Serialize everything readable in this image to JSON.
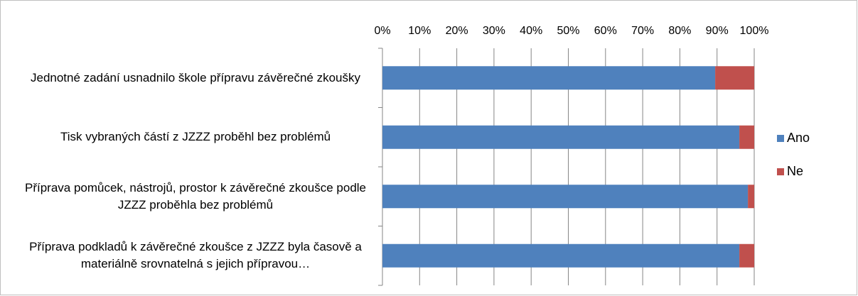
{
  "chart_data": {
    "type": "stacked_barh",
    "categories": [
      "Jednotné zadání usnadnilo škole přípravu závěrečné zkoušky",
      "Tisk vybraných částí z JZZZ proběhl bez problémů",
      "Příprava pomůcek, nástrojů, prostor k závěrečné zkoušce podle JZZZ proběhla bez problémů",
      "Příprava podkladů k závěrečné zkoušce z JZZZ byla časově a materiálně srovnatelná s jejich přípravou…"
    ],
    "series": [
      {
        "name": "Ano",
        "color": "#4f81bd",
        "values": [
          89.5,
          96,
          98.3,
          96
        ]
      },
      {
        "name": "Ne",
        "color": "#c0504d",
        "values": [
          10.5,
          4,
          1.7,
          4
        ]
      }
    ],
    "xlim": [
      0,
      100
    ],
    "xticks": [
      {
        "value": 0,
        "label": "0%"
      },
      {
        "value": 10,
        "label": "10%"
      },
      {
        "value": 20,
        "label": "20%"
      },
      {
        "value": 30,
        "label": "30%"
      },
      {
        "value": 40,
        "label": "40%"
      },
      {
        "value": 50,
        "label": "50%"
      },
      {
        "value": 60,
        "label": "60%"
      },
      {
        "value": 70,
        "label": "70%"
      },
      {
        "value": 80,
        "label": "80%"
      },
      {
        "value": 90,
        "label": "90%"
      },
      {
        "value": 100,
        "label": "100%"
      }
    ],
    "grid": true,
    "legend": "right"
  }
}
